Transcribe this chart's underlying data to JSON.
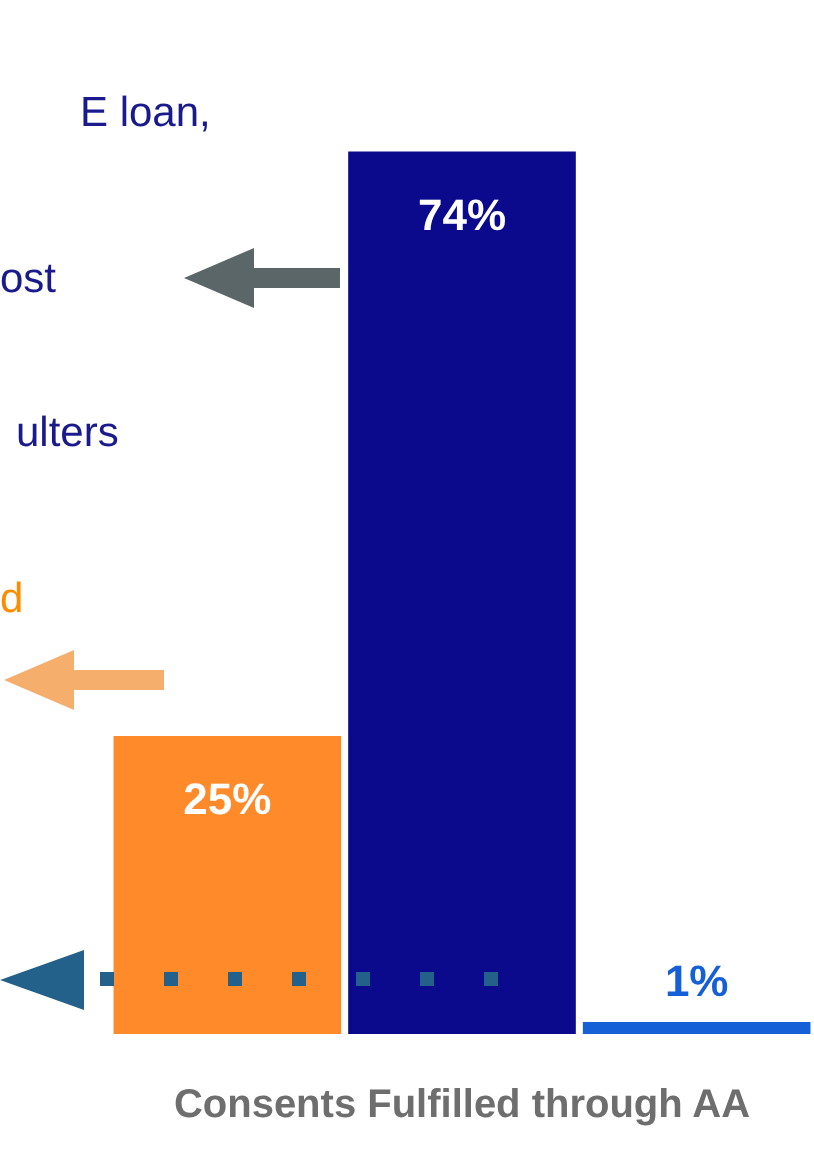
{
  "chart_data": {
    "type": "bar",
    "xlabel": "Consents Fulfilled through AA",
    "categories": [
      null,
      null,
      null
    ],
    "values": [
      25,
      74,
      1
    ],
    "colors": [
      "#ff8a2a",
      "#0b0a8c",
      "#1560d6"
    ],
    "value_labels": [
      "25%",
      "74%",
      "1%"
    ],
    "legend": false,
    "grid": false,
    "annotations": [
      "E loan,",
      "ost",
      "ulters",
      "d"
    ]
  }
}
